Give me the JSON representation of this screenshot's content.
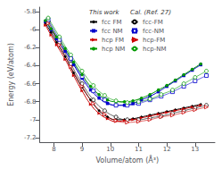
{
  "chart_data": {
    "type": "line",
    "xlabel": "Volume/atom (Å³)",
    "ylabel": "Energy (eV/atom)",
    "xlim": [
      7.5,
      13.7
    ],
    "ylim": [
      -7.25,
      -5.75
    ],
    "xticks": [
      8,
      9,
      10,
      11,
      12,
      13
    ],
    "yticks": [
      -7.2,
      -7.0,
      -6.8,
      -6.6,
      -6.4,
      -6.2,
      -6.0,
      -5.8
    ],
    "grid": false,
    "legend": "upper center",
    "annotations": [
      "This work",
      "Cal. (Ref. 27)"
    ],
    "series": [
      {
        "name": "fcc FM",
        "color": "#000000",
        "marker": "diamond",
        "line_style": "solid",
        "x": [
          7.7,
          7.9,
          8.1,
          8.4,
          8.7,
          9.0,
          9.3,
          9.6,
          9.9,
          10.2,
          10.5,
          10.8,
          11.1,
          11.4,
          11.7,
          12.0,
          12.3,
          12.6,
          12.9,
          13.2
        ],
        "values": [
          -5.93,
          -6.03,
          -6.14,
          -6.3,
          -6.48,
          -6.64,
          -6.78,
          -6.9,
          -6.97,
          -7.0,
          -7.0,
          -6.99,
          -6.97,
          -6.95,
          -6.93,
          -6.91,
          -6.89,
          -6.87,
          -6.85,
          -6.83
        ]
      },
      {
        "name": "fcc-FM",
        "color": "#000000",
        "marker": "open-circle",
        "line_style": "solid",
        "x": [
          7.8,
          8.2,
          8.6,
          9.0,
          9.4,
          9.8,
          10.2,
          10.6,
          11.0,
          11.4,
          11.8,
          12.2,
          12.6,
          13.0,
          13.4
        ],
        "values": [
          -5.91,
          -6.14,
          -6.38,
          -6.6,
          -6.78,
          -6.9,
          -6.97,
          -7.0,
          -7.0,
          -6.98,
          -6.96,
          -6.93,
          -6.9,
          -6.87,
          -6.84
        ]
      },
      {
        "name": "fcc NM",
        "color": "#0000cc",
        "marker": "square",
        "line_style": "solid",
        "x": [
          7.7,
          7.9,
          8.1,
          8.4,
          8.7,
          9.0,
          9.3,
          9.6,
          9.9,
          10.2,
          10.5,
          10.8,
          11.1,
          11.4,
          11.7,
          12.0,
          12.3,
          12.6,
          12.9,
          13.2
        ],
        "values": [
          -5.91,
          -6.0,
          -6.1,
          -6.24,
          -6.39,
          -6.54,
          -6.67,
          -6.76,
          -6.82,
          -6.84,
          -6.84,
          -6.82,
          -6.78,
          -6.74,
          -6.69,
          -6.63,
          -6.57,
          -6.51,
          -6.45,
          -6.39
        ]
      },
      {
        "name": "fcc-NM",
        "color": "#0000cc",
        "marker": "open-square",
        "line_style": "solid",
        "x": [
          7.8,
          8.2,
          8.6,
          9.0,
          9.4,
          9.8,
          10.2,
          10.6,
          11.0,
          11.4,
          11.8,
          12.2,
          12.6,
          13.0,
          13.4
        ],
        "values": [
          -5.89,
          -6.11,
          -6.32,
          -6.52,
          -6.68,
          -6.78,
          -6.84,
          -6.84,
          -6.82,
          -6.78,
          -6.74,
          -6.69,
          -6.63,
          -6.57,
          -6.51
        ]
      },
      {
        "name": "hcp FM",
        "color": "#cc0000",
        "marker": "triangle-right",
        "line_style": "solid",
        "x": [
          7.7,
          7.9,
          8.1,
          8.4,
          8.7,
          9.0,
          9.3,
          9.6,
          9.9,
          10.2,
          10.5,
          10.8,
          11.1,
          11.4,
          11.7,
          12.0,
          12.3,
          12.6,
          12.9,
          13.2
        ],
        "values": [
          -5.95,
          -6.06,
          -6.17,
          -6.33,
          -6.51,
          -6.68,
          -6.83,
          -6.93,
          -6.99,
          -7.02,
          -7.01,
          -7.0,
          -6.98,
          -6.96,
          -6.94,
          -6.92,
          -6.9,
          -6.88,
          -6.86,
          -6.84
        ]
      },
      {
        "name": "hcp-FM",
        "color": "#cc0000",
        "marker": "open-triangle-right",
        "line_style": "solid",
        "x": [
          7.8,
          8.2,
          8.6,
          9.0,
          9.4,
          9.8,
          10.2,
          10.6,
          11.0,
          11.4,
          11.8,
          12.2,
          12.6,
          13.0,
          13.4
        ],
        "values": [
          -5.93,
          -6.17,
          -6.41,
          -6.63,
          -6.82,
          -6.94,
          -7.01,
          -7.03,
          -7.02,
          -7.0,
          -6.97,
          -6.95,
          -6.92,
          -6.89,
          -6.86
        ]
      },
      {
        "name": "hcp NM",
        "color": "#009900",
        "marker": "circle",
        "line_style": "solid",
        "x": [
          7.7,
          7.9,
          8.1,
          8.4,
          8.7,
          9.0,
          9.3,
          9.6,
          9.9,
          10.2,
          10.5,
          10.8,
          11.1,
          11.4,
          11.7,
          12.0,
          12.3,
          12.6,
          12.9,
          13.2
        ],
        "values": [
          -5.9,
          -5.99,
          -6.08,
          -6.21,
          -6.36,
          -6.5,
          -6.63,
          -6.72,
          -6.78,
          -6.8,
          -6.8,
          -6.79,
          -6.76,
          -6.72,
          -6.67,
          -6.62,
          -6.56,
          -6.5,
          -6.44,
          -6.38
        ]
      },
      {
        "name": "hcp-NM",
        "color": "#009900",
        "marker": "open-circle",
        "line_style": "solid",
        "x": [
          7.8,
          8.2,
          8.6,
          9.0,
          9.4,
          9.8,
          10.2,
          10.6,
          11.0,
          11.4,
          11.8,
          12.2,
          12.6,
          13.0,
          13.4
        ],
        "values": [
          -5.87,
          -6.08,
          -6.28,
          -6.46,
          -6.62,
          -6.73,
          -6.79,
          -6.81,
          -6.8,
          -6.77,
          -6.72,
          -6.67,
          -6.6,
          -6.53,
          -6.46
        ]
      }
    ]
  }
}
